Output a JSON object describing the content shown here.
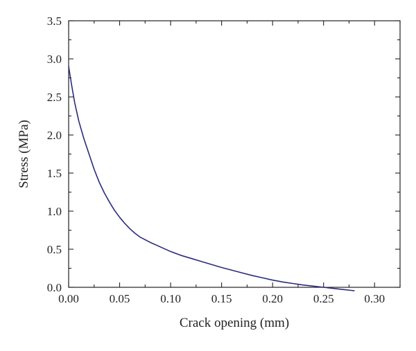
{
  "chart_data": {
    "type": "line",
    "title": "",
    "xlabel": "Crack opening (mm)",
    "ylabel": "Stress (MPa)",
    "xlim": [
      0.0,
      0.325
    ],
    "ylim": [
      0.0,
      3.5
    ],
    "x_ticks": [
      0.0,
      0.05,
      0.1,
      0.15,
      0.2,
      0.25,
      0.3
    ],
    "x_tick_labels": [
      "0.00",
      "0.05",
      "0.10",
      "0.15",
      "0.20",
      "0.25",
      "0.30"
    ],
    "x_minor_ticks": [
      0.025,
      0.075,
      0.125,
      0.175,
      0.225,
      0.275,
      0.325
    ],
    "y_ticks": [
      0.0,
      0.5,
      1.0,
      1.5,
      2.0,
      2.5,
      3.0,
      3.5
    ],
    "y_tick_labels": [
      "0.0",
      "0.5",
      "1.0",
      "1.5",
      "2.0",
      "2.5",
      "3.0",
      "3.5"
    ],
    "y_minor_ticks": [
      0.25,
      0.75,
      1.25,
      1.75,
      2.25,
      2.75,
      3.25
    ],
    "grid": false,
    "legend": "none",
    "series": [
      {
        "color": "#2b2a7c",
        "x": [
          0.0,
          0.003,
          0.006,
          0.01,
          0.015,
          0.02,
          0.025,
          0.03,
          0.035,
          0.04,
          0.045,
          0.05,
          0.055,
          0.06,
          0.065,
          0.07,
          0.08,
          0.09,
          0.1,
          0.11,
          0.12,
          0.13,
          0.14,
          0.15,
          0.16,
          0.17,
          0.18,
          0.19,
          0.2,
          0.21,
          0.22,
          0.23,
          0.24,
          0.25,
          0.26,
          0.27,
          0.28
        ],
        "y": [
          2.9,
          2.65,
          2.42,
          2.18,
          1.95,
          1.75,
          1.55,
          1.38,
          1.24,
          1.12,
          1.01,
          0.92,
          0.84,
          0.77,
          0.71,
          0.66,
          0.59,
          0.53,
          0.47,
          0.42,
          0.38,
          0.34,
          0.3,
          0.26,
          0.225,
          0.19,
          0.155,
          0.125,
          0.095,
          0.07,
          0.05,
          0.03,
          0.015,
          0.0,
          -0.015,
          -0.03,
          -0.045
        ]
      }
    ]
  }
}
